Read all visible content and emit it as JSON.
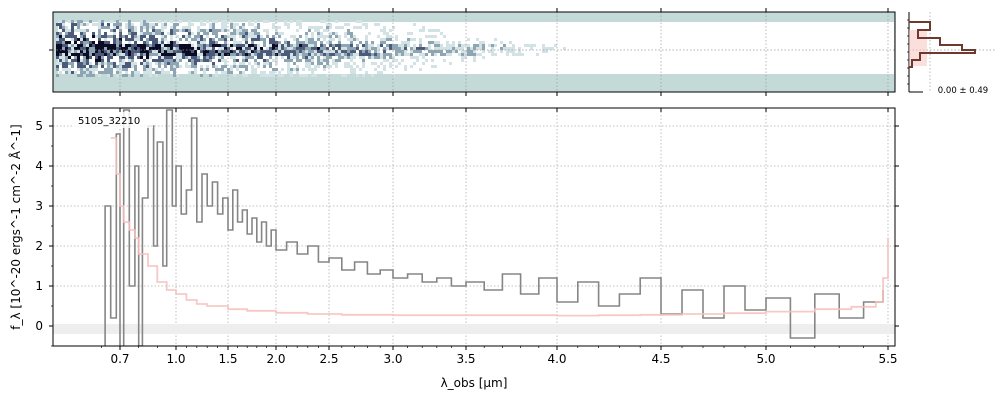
{
  "chart_data": {
    "type": "line",
    "object_label": "5105_32210",
    "xlabel": "λ_obs [μm]",
    "ylabel": "f_λ [10^-20 ergs^-1 cm^-2 Å^-1]",
    "ylim": [
      -0.5,
      5.45
    ],
    "xlim": [
      0.56,
      5.52
    ],
    "x_ticks": [
      0.7,
      1.0,
      1.5,
      2.0,
      2.5,
      3.0,
      3.5,
      4.0,
      4.5,
      5.0,
      5.5
    ],
    "x_tick_labels": [
      "0.7",
      "1.0",
      "1.5",
      "2.0",
      "2.5",
      "3.0",
      "3.5",
      "4.0",
      "4.5",
      "5.0",
      "5.5"
    ],
    "y_ticks": [
      0,
      1,
      2,
      3,
      4,
      5
    ],
    "y_tick_labels": [
      "0",
      "1",
      "2",
      "3",
      "4",
      "5"
    ],
    "grid": true,
    "series": [
      {
        "color": "#808080",
        "x": [
          0.6,
          0.62,
          0.65,
          0.68,
          0.7,
          0.72,
          0.75,
          0.78,
          0.8,
          0.82,
          0.85,
          0.88,
          0.9,
          0.93,
          0.95,
          0.98,
          1.0,
          1.05,
          1.1,
          1.15,
          1.2,
          1.25,
          1.3,
          1.35,
          1.4,
          1.45,
          1.5,
          1.55,
          1.6,
          1.65,
          1.7,
          1.75,
          1.8,
          1.85,
          1.9,
          1.95,
          2.0,
          2.1,
          2.2,
          2.3,
          2.4,
          2.5,
          2.6,
          2.7,
          2.8,
          2.9,
          3.0,
          3.1,
          3.2,
          3.3,
          3.4,
          3.5,
          3.6,
          3.7,
          3.8,
          3.9,
          4.0,
          4.1,
          4.2,
          4.3,
          4.4,
          4.5,
          4.6,
          4.7,
          4.8,
          4.9,
          5.0,
          5.1,
          5.2,
          5.3,
          5.4,
          5.48
        ],
        "y": [
          -1.0,
          3.0,
          0.2,
          4.8,
          -0.8,
          5.4,
          1.0,
          4.0,
          -0.5,
          3.2,
          5.0,
          2.0,
          4.6,
          1.5,
          5.4,
          3.0,
          4.0,
          2.8,
          3.4,
          5.2,
          2.6,
          3.8,
          3.0,
          3.6,
          2.8,
          3.2,
          2.4,
          3.4,
          2.6,
          2.9,
          2.3,
          2.7,
          2.1,
          2.6,
          2.0,
          2.4,
          1.9,
          2.1,
          1.8,
          2.0,
          1.6,
          1.7,
          1.4,
          1.6,
          1.3,
          1.4,
          1.2,
          1.3,
          1.1,
          1.2,
          1.0,
          1.1,
          0.9,
          1.3,
          0.8,
          1.2,
          0.6,
          1.1,
          0.5,
          0.8,
          1.2,
          0.3,
          0.9,
          0.2,
          1.0,
          0.4,
          0.7,
          -0.3,
          0.8,
          0.2,
          0.6,
          0.9
        ]
      },
      {
        "color": "#f6c0bc",
        "x": [
          0.65,
          0.68,
          0.7,
          0.72,
          0.75,
          0.78,
          0.8,
          0.85,
          0.9,
          0.95,
          1.0,
          1.1,
          1.2,
          1.3,
          1.5,
          1.7,
          2.0,
          2.3,
          2.6,
          3.0,
          3.4,
          3.8,
          4.0,
          4.2,
          4.4,
          4.6,
          4.8,
          5.0,
          5.2,
          5.35,
          5.45,
          5.48,
          5.5
        ],
        "y": [
          4.7,
          3.8,
          3.0,
          2.6,
          2.4,
          2.2,
          1.8,
          1.5,
          1.1,
          0.9,
          0.8,
          0.65,
          0.55,
          0.5,
          0.42,
          0.38,
          0.33,
          0.3,
          0.28,
          0.27,
          0.27,
          0.27,
          0.26,
          0.27,
          0.28,
          0.3,
          0.32,
          0.36,
          0.42,
          0.48,
          0.6,
          1.2,
          2.2
        ]
      }
    ],
    "inset": {
      "label": "0.00 ± 0.49"
    }
  }
}
